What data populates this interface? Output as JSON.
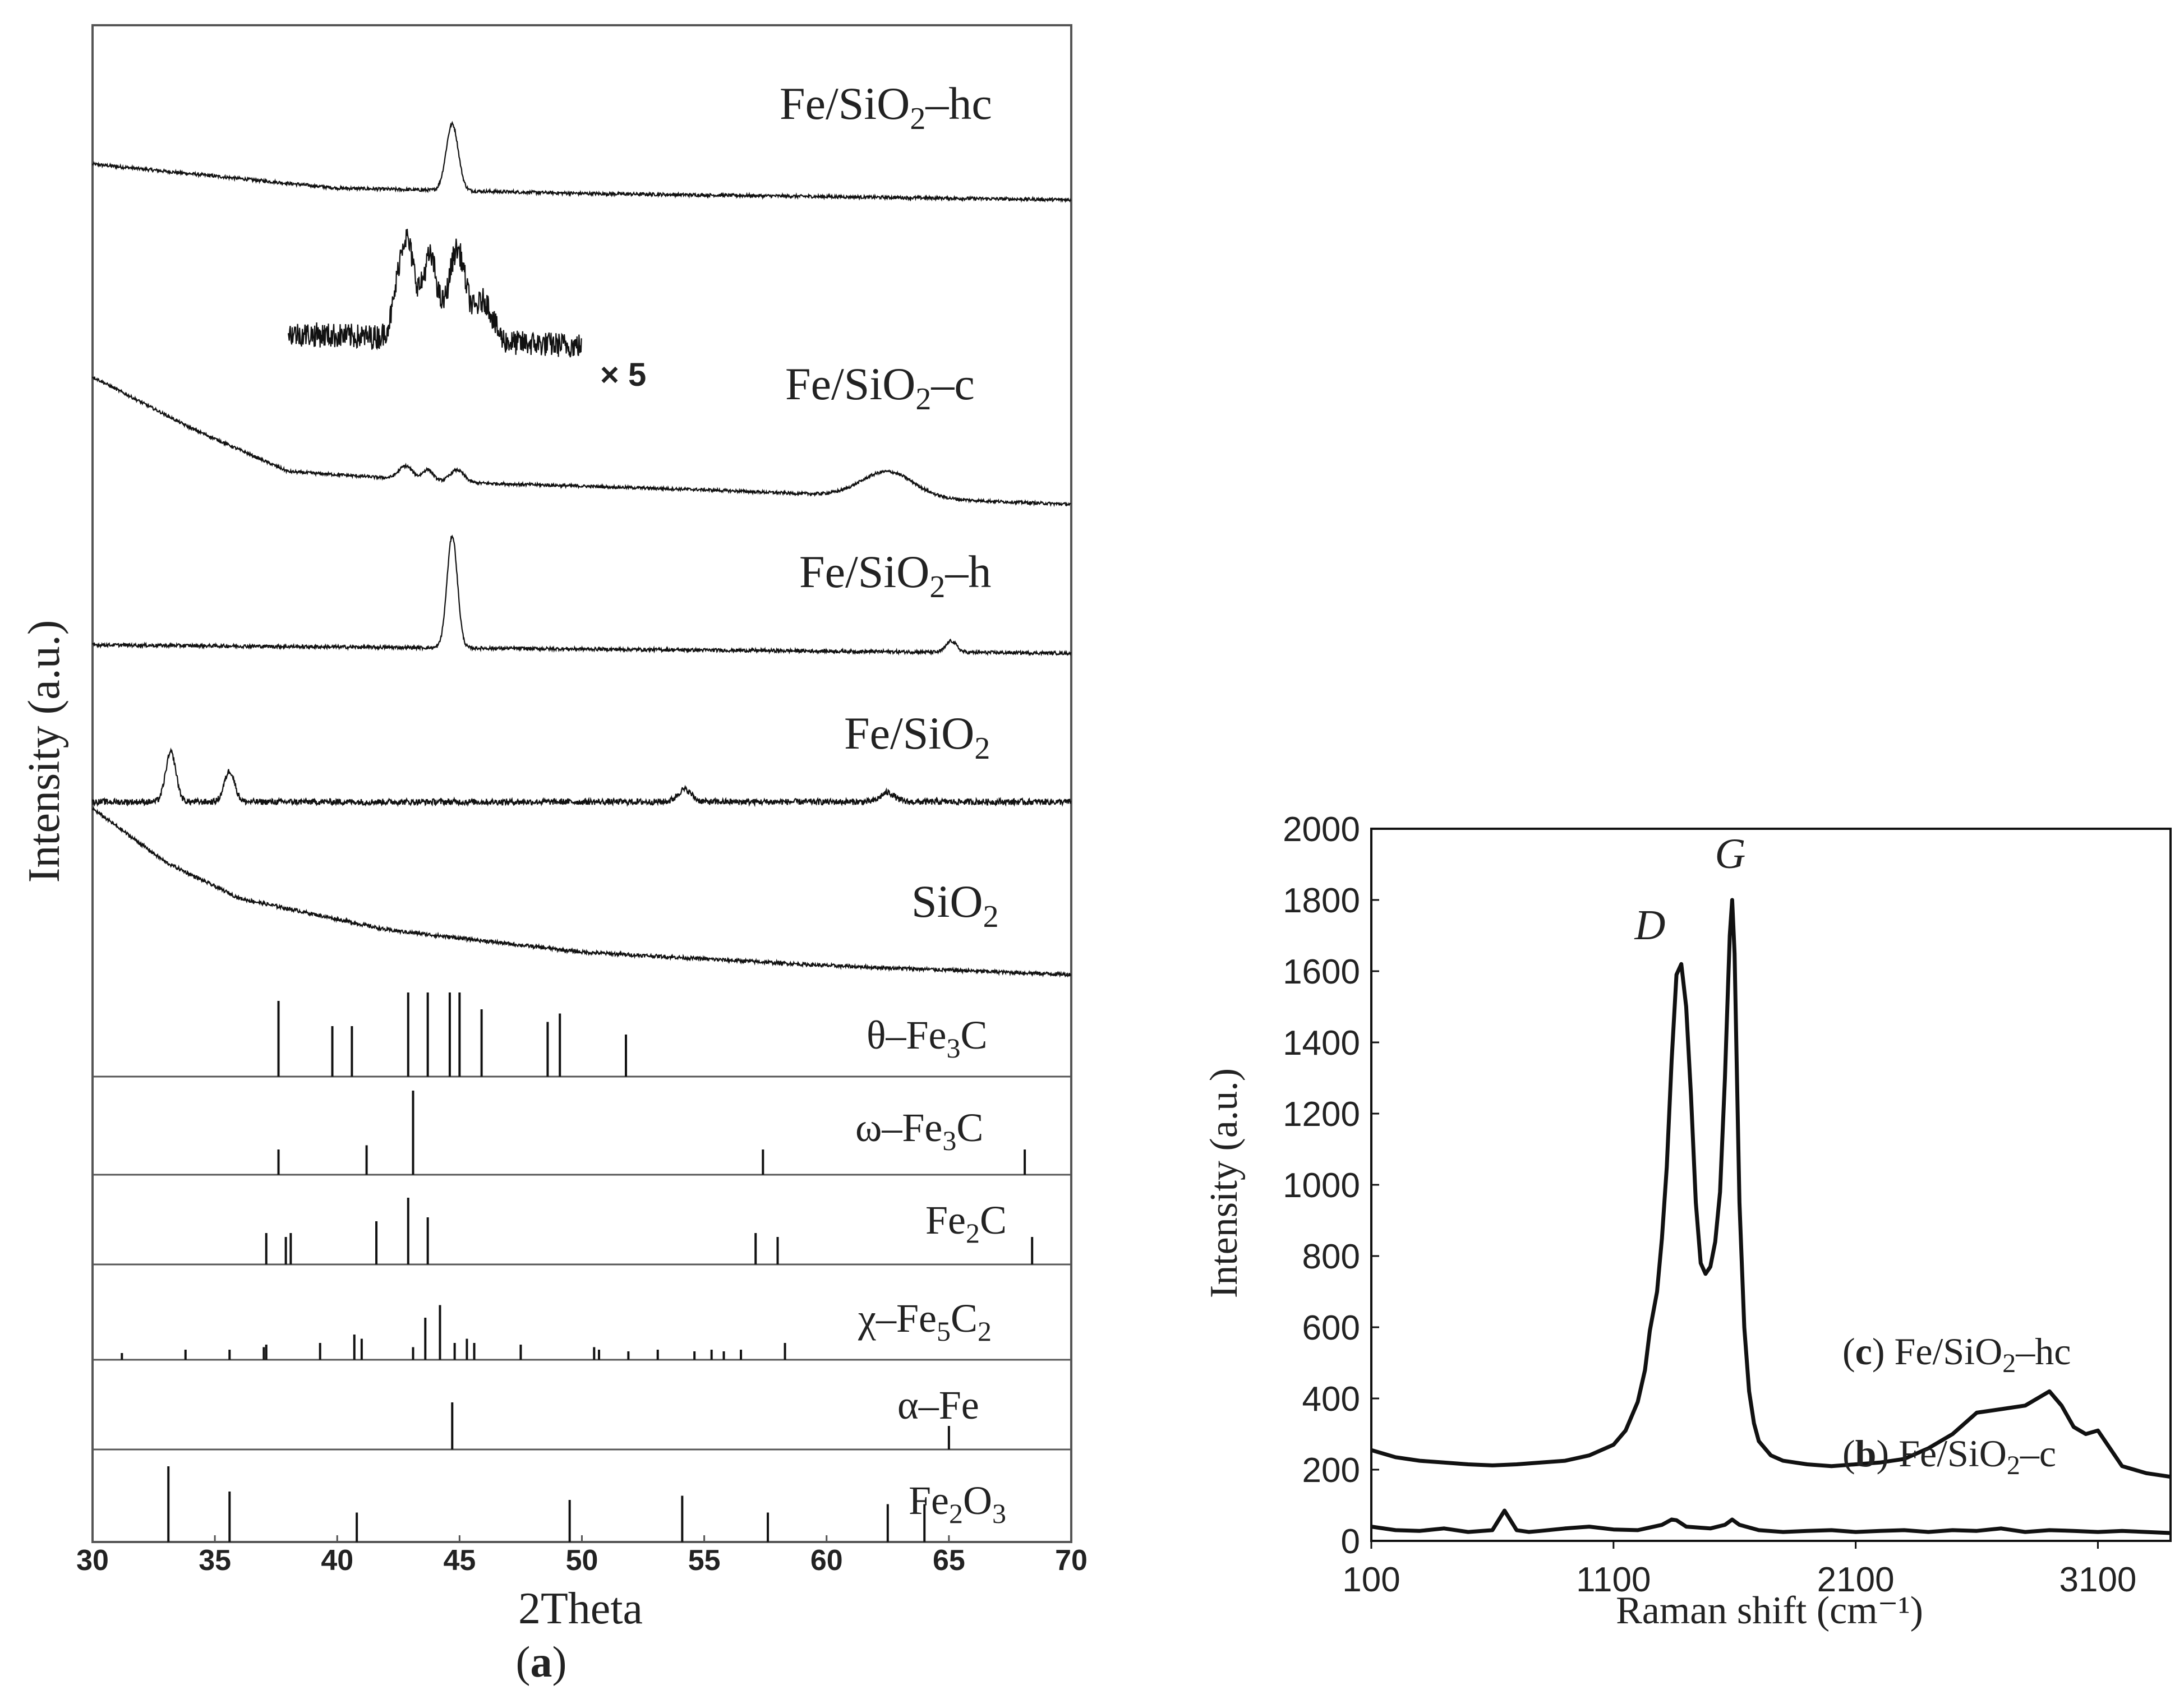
{
  "figure": {
    "panel_a_label": "(a)",
    "panel_a_letter": "a",
    "times5_label": "× 5"
  },
  "colors": {
    "ink": "#111111",
    "frame": "#555555",
    "text": "#222222"
  },
  "chart_data": [
    {
      "type": "line",
      "panel": "a",
      "title": "",
      "xlabel": "2Theta",
      "ylabel": "Intensity (a.u.)",
      "xlim": [
        30,
        70
      ],
      "xticks": [
        30,
        35,
        40,
        45,
        50,
        55,
        60,
        65,
        70
      ],
      "grid": false,
      "series": [
        {
          "name": "Fe/SiO2–hc",
          "label_main": "Fe/SiO",
          "label_sub": "2",
          "label_tail": "–hc",
          "base": [
            [
              30,
              0.55
            ],
            [
              40,
              0.1
            ],
            [
              50,
              0.0
            ],
            [
              70,
              -0.12
            ]
          ],
          "peaks": [
            [
              44.7,
              1.25,
              0.35
            ]
          ],
          "noise": 0.06
        },
        {
          "name": "Fe/SiO2–c",
          "label_main": "Fe/SiO",
          "label_sub": "2",
          "label_tail": "–c",
          "base": [
            [
              30,
              1.6
            ],
            [
              34,
              0.9
            ],
            [
              38,
              0.3
            ],
            [
              45,
              0.15
            ],
            [
              55,
              0.05
            ],
            [
              70,
              -0.15
            ]
          ],
          "peaks": [
            [
              42.8,
              0.18,
              0.4
            ],
            [
              43.7,
              0.15,
              0.3
            ],
            [
              44.9,
              0.17,
              0.4
            ],
            [
              62.5,
              0.35,
              1.5
            ]
          ],
          "noise": 0.04
        },
        {
          "name": "Fe/SiO2–h",
          "label_main": "Fe/SiO",
          "label_sub": "2",
          "label_tail": "–h",
          "base": [
            [
              30,
              0.1
            ],
            [
              70,
              -0.05
            ]
          ],
          "peaks": [
            [
              44.7,
              2.0,
              0.3
            ],
            [
              65.1,
              0.2,
              0.3
            ]
          ],
          "noise": 0.06
        },
        {
          "name": "Fe/SiO2",
          "label_main": "Fe/SiO",
          "label_sub": "2",
          "label_tail": "",
          "base": [
            [
              30,
              0.0
            ],
            [
              70,
              0.0
            ]
          ],
          "peaks": [
            [
              33.2,
              0.8,
              0.3
            ],
            [
              35.6,
              0.5,
              0.3
            ],
            [
              54.2,
              0.2,
              0.4
            ],
            [
              62.5,
              0.15,
              0.4
            ]
          ],
          "noise": 0.1
        },
        {
          "name": "SiO2",
          "label_main": "SiO",
          "label_sub": "2",
          "label_tail": "",
          "base": [
            [
              30,
              1.8
            ],
            [
              33,
              1.2
            ],
            [
              36,
              0.8
            ],
            [
              42,
              0.45
            ],
            [
              50,
              0.2
            ],
            [
              60,
              0.05
            ],
            [
              70,
              -0.05
            ]
          ],
          "peaks": [],
          "noise": 0.04
        }
      ],
      "inset_x5": {
        "range": [
          38,
          50
        ],
        "peaks": [
          [
            42.8,
            1.0,
            0.5
          ],
          [
            43.8,
            0.8,
            0.4
          ],
          [
            44.9,
            0.9,
            0.5
          ],
          [
            46.0,
            0.4,
            0.5
          ]
        ],
        "noise": 0.25
      },
      "references": [
        {
          "name": "θ–Fe3C",
          "label_main": "θ–Fe",
          "label_sub": "3",
          "label_tail": "C",
          "lines": [
            [
              37.6,
              0.9
            ],
            [
              39.8,
              0.6
            ],
            [
              40.6,
              0.6
            ],
            [
              42.9,
              1.0
            ],
            [
              43.7,
              1.0
            ],
            [
              44.6,
              1.0
            ],
            [
              45.0,
              1.0
            ],
            [
              45.9,
              0.8
            ],
            [
              48.6,
              0.65
            ],
            [
              49.1,
              0.75
            ],
            [
              51.8,
              0.5
            ]
          ]
        },
        {
          "name": "ω–Fe3C",
          "label_main": "ω–Fe",
          "label_sub": "3",
          "label_tail": "C",
          "lines": [
            [
              37.6,
              0.3
            ],
            [
              41.2,
              0.35
            ],
            [
              43.1,
              1.0
            ],
            [
              57.4,
              0.3
            ],
            [
              68.1,
              0.3
            ]
          ]
        },
        {
          "name": "Fe2C",
          "label_main": "Fe",
          "label_sub": "2",
          "label_tail": "C",
          "lines": [
            [
              37.1,
              0.4
            ],
            [
              37.9,
              0.35
            ],
            [
              38.1,
              0.4
            ],
            [
              41.6,
              0.55
            ],
            [
              42.9,
              0.85
            ],
            [
              43.7,
              0.6
            ],
            [
              57.1,
              0.4
            ],
            [
              58.0,
              0.35
            ],
            [
              68.4,
              0.35
            ]
          ]
        },
        {
          "name": "χ–Fe5C2",
          "label_main": "χ–Fe",
          "label_sub": "5",
          "label_tail": "C",
          "label_sub2": "2",
          "lines": [
            [
              31.2,
              0.08
            ],
            [
              33.8,
              0.12
            ],
            [
              35.6,
              0.12
            ],
            [
              37.0,
              0.15
            ],
            [
              37.1,
              0.18
            ],
            [
              39.3,
              0.2
            ],
            [
              40.7,
              0.3
            ],
            [
              41.0,
              0.25
            ],
            [
              43.1,
              0.15
            ],
            [
              43.6,
              0.5
            ],
            [
              44.2,
              0.65
            ],
            [
              44.8,
              0.2
            ],
            [
              45.3,
              0.25
            ],
            [
              45.6,
              0.2
            ],
            [
              47.5,
              0.18
            ],
            [
              50.5,
              0.15
            ],
            [
              50.7,
              0.12
            ],
            [
              51.9,
              0.1
            ],
            [
              53.1,
              0.12
            ],
            [
              54.6,
              0.1
            ],
            [
              55.3,
              0.12
            ],
            [
              55.8,
              0.1
            ],
            [
              56.5,
              0.12
            ],
            [
              58.3,
              0.2
            ]
          ]
        },
        {
          "name": "α–Fe",
          "label_main": "α–Fe",
          "label_sub": "",
          "label_tail": "",
          "lines": [
            [
              44.7,
              0.6
            ],
            [
              65.0,
              0.3
            ]
          ]
        },
        {
          "name": "Fe2O3",
          "label_main": "Fe",
          "label_sub": "2",
          "label_tail": "O",
          "label_sub2": "3",
          "lines": [
            [
              33.1,
              0.9
            ],
            [
              35.6,
              0.6
            ],
            [
              40.8,
              0.35
            ],
            [
              49.5,
              0.5
            ],
            [
              54.1,
              0.55
            ],
            [
              57.6,
              0.35
            ],
            [
              62.5,
              0.45
            ],
            [
              64.0,
              0.45
            ]
          ]
        }
      ]
    },
    {
      "type": "line",
      "panel": "b-c",
      "title": "",
      "xlabel": "Raman shift (cm⁻¹)",
      "ylabel": "Intensity (a.u.)",
      "xlim": [
        100,
        3400
      ],
      "ylim": [
        0,
        2000
      ],
      "xticks": [
        100,
        1100,
        2100,
        3100
      ],
      "yticks": [
        0,
        200,
        400,
        600,
        800,
        1000,
        1200,
        1400,
        1600,
        1800,
        2000
      ],
      "grid": false,
      "annotations": [
        {
          "text": "D",
          "x": 1350,
          "y": 1690
        },
        {
          "text": "G",
          "x": 1590,
          "y": 1880
        }
      ],
      "series": [
        {
          "name": "(c) Fe/SiO2–hc",
          "label_letter": "c",
          "label_main": " Fe/SiO",
          "label_sub": "2",
          "label_tail": "–hc",
          "x": [
            100,
            200,
            300,
            400,
            500,
            600,
            700,
            800,
            900,
            1000,
            1100,
            1150,
            1200,
            1230,
            1250,
            1280,
            1300,
            1320,
            1340,
            1360,
            1380,
            1400,
            1420,
            1440,
            1460,
            1480,
            1500,
            1520,
            1540,
            1560,
            1580,
            1590,
            1600,
            1610,
            1620,
            1640,
            1660,
            1680,
            1700,
            1750,
            1800,
            1900,
            2000,
            2100,
            2200,
            2300,
            2400,
            2500,
            2600,
            2700,
            2800,
            2850,
            2900,
            2950,
            3000,
            3050,
            3100,
            3150,
            3200,
            3300,
            3400
          ],
          "y": [
            255,
            235,
            225,
            220,
            215,
            212,
            215,
            220,
            225,
            240,
            270,
            310,
            390,
            480,
            590,
            700,
            850,
            1050,
            1350,
            1590,
            1620,
            1500,
            1250,
            950,
            780,
            750,
            770,
            840,
            980,
            1300,
            1700,
            1800,
            1650,
            1300,
            950,
            600,
            420,
            330,
            280,
            240,
            225,
            215,
            210,
            215,
            220,
            230,
            260,
            300,
            360,
            370,
            380,
            400,
            420,
            380,
            320,
            300,
            310,
            260,
            210,
            190,
            180
          ]
        },
        {
          "name": "(b) Fe/SiO2–c",
          "label_letter": "b",
          "label_main": " Fe/SiO",
          "label_sub": "2",
          "label_tail": "–c",
          "x": [
            100,
            200,
            300,
            400,
            500,
            600,
            650,
            700,
            750,
            800,
            900,
            1000,
            1100,
            1200,
            1300,
            1340,
            1360,
            1400,
            1500,
            1560,
            1590,
            1620,
            1700,
            1800,
            1900,
            2000,
            2100,
            2200,
            2300,
            2400,
            2500,
            2600,
            2700,
            2800,
            2900,
            3000,
            3100,
            3200,
            3300,
            3400
          ],
          "y": [
            40,
            30,
            28,
            35,
            25,
            30,
            85,
            30,
            25,
            28,
            35,
            40,
            32,
            30,
            45,
            60,
            58,
            40,
            35,
            45,
            60,
            45,
            30,
            25,
            28,
            30,
            25,
            28,
            30,
            25,
            30,
            28,
            35,
            25,
            30,
            28,
            25,
            28,
            25,
            22
          ]
        }
      ]
    }
  ]
}
